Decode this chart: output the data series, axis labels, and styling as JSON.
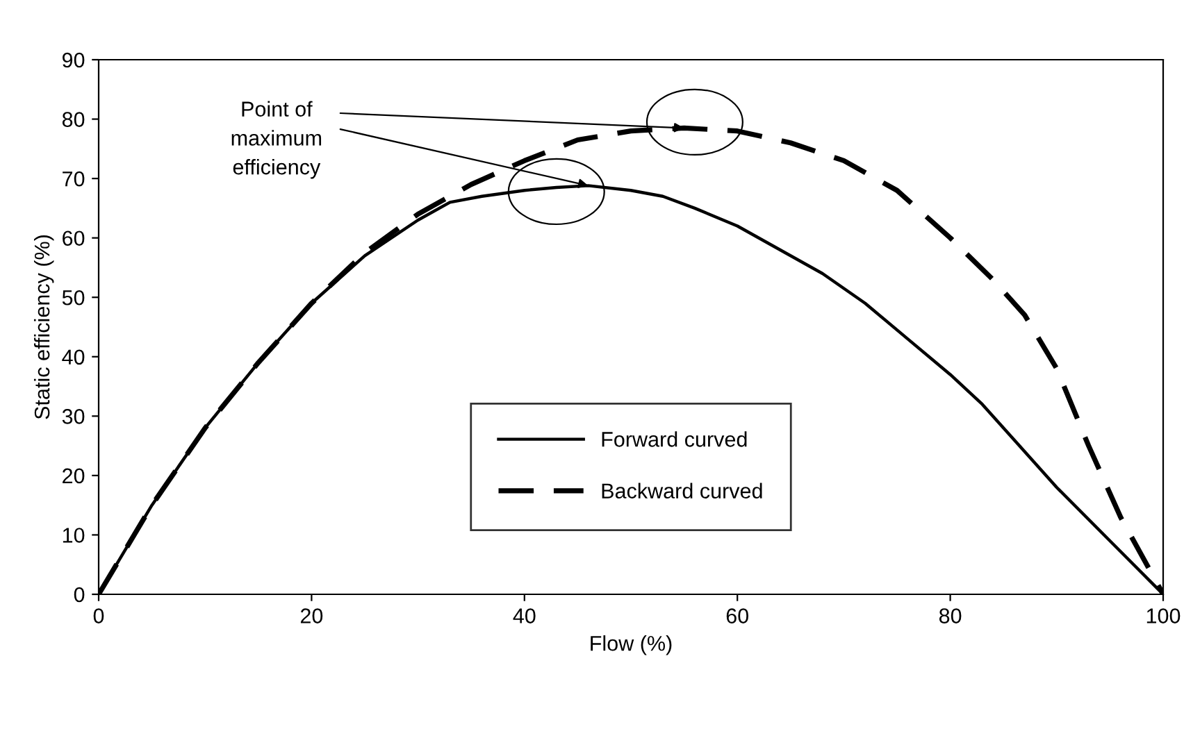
{
  "chart_data": {
    "type": "line",
    "xlabel": "Flow (%)",
    "ylabel": "Static efficiency (%)",
    "xlim": [
      0,
      100
    ],
    "ylim": [
      0,
      90
    ],
    "xticks": [
      0,
      20,
      40,
      60,
      80,
      100
    ],
    "yticks": [
      0,
      10,
      20,
      30,
      40,
      50,
      60,
      70,
      80,
      90
    ],
    "grid": false,
    "legend": "bottom",
    "annotations": [
      {
        "text": "Point of\nmaximum\nefficiency",
        "x": 55,
        "y": 78.5
      }
    ],
    "series": [
      {
        "name": "Forward curved",
        "color": "#000000",
        "line_style": "solid",
        "x": [
          0,
          5,
          10,
          15,
          20,
          25,
          30,
          33,
          36,
          40,
          43,
          46,
          50,
          53,
          56,
          60,
          64,
          68,
          72,
          76,
          80,
          83,
          86,
          90,
          95,
          100
        ],
        "values": [
          0,
          15,
          28,
          39,
          49,
          57,
          63,
          66,
          67,
          68,
          68.5,
          68.8,
          68,
          67,
          65,
          62,
          58,
          54,
          49,
          43,
          37,
          32,
          26,
          18,
          9,
          0
        ]
      },
      {
        "name": "Backward curved",
        "color": "#000000",
        "line_style": "dashed",
        "x": [
          0,
          5,
          10,
          15,
          20,
          25,
          30,
          35,
          40,
          45,
          50,
          55,
          60,
          65,
          70,
          75,
          80,
          84,
          87,
          90,
          93,
          96,
          100
        ],
        "values": [
          0,
          15,
          28,
          39,
          49,
          57.5,
          64,
          69,
          73,
          76.5,
          78,
          78.5,
          78,
          76,
          73,
          68,
          60,
          53,
          47,
          38,
          25,
          13,
          0
        ]
      }
    ]
  }
}
